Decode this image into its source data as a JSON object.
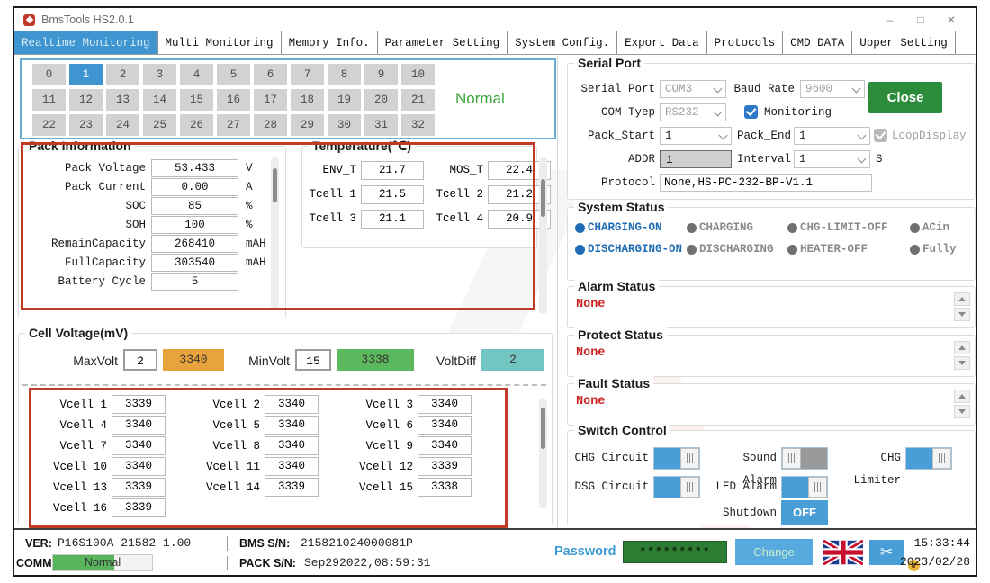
{
  "window": {
    "title": "BmsTools HS2.0.1",
    "controls": {
      "minimize": "–",
      "maximize": "□",
      "close": "✕"
    }
  },
  "tabs": [
    {
      "label": "Realtime Monitoring",
      "active": true
    },
    {
      "label": "Multi Monitoring",
      "active": false
    },
    {
      "label": "Memory Info.",
      "active": false
    },
    {
      "label": "Parameter Setting",
      "active": false
    },
    {
      "label": "System Config.",
      "active": false
    },
    {
      "label": "Export Data",
      "active": false
    },
    {
      "label": "Protocols",
      "active": false
    },
    {
      "label": "CMD DATA",
      "active": false
    },
    {
      "label": "Upper Setting",
      "active": false
    }
  ],
  "pack_selector": {
    "cells": [
      "0",
      "1",
      "2",
      "3",
      "4",
      "5",
      "6",
      "7",
      "8",
      "9",
      "10",
      "11",
      "12",
      "13",
      "14",
      "15",
      "16",
      "17",
      "18",
      "19",
      "20",
      "21",
      "22",
      "23",
      "24",
      "25",
      "26",
      "27",
      "28",
      "29",
      "30",
      "31",
      "32"
    ],
    "selected": "1",
    "status": "Normal"
  },
  "pack_information": {
    "title": "Pack Information",
    "rows": [
      {
        "label": "Pack Voltage",
        "value": "53.433",
        "unit": "V"
      },
      {
        "label": "Pack Current",
        "value": "0.00",
        "unit": "A"
      },
      {
        "label": "SOC",
        "value": "85",
        "unit": "%"
      },
      {
        "label": "SOH",
        "value": "100",
        "unit": "%"
      },
      {
        "label": "RemainCapacity",
        "value": "268410",
        "unit": "mAH"
      },
      {
        "label": "FullCapacity",
        "value": "303540",
        "unit": "mAH"
      },
      {
        "label": "Battery Cycle",
        "value": "5",
        "unit": ""
      }
    ]
  },
  "temperature": {
    "title": "Temperature(℃)",
    "rows": [
      [
        {
          "label": "ENV_T",
          "value": "21.7"
        },
        {
          "label": "MOS_T",
          "value": "22.4"
        }
      ],
      [
        {
          "label": "Tcell 1",
          "value": "21.5"
        },
        {
          "label": "Tcell 2",
          "value": "21.2"
        }
      ],
      [
        {
          "label": "Tcell 3",
          "value": "21.1"
        },
        {
          "label": "Tcell 4",
          "value": "20.9"
        }
      ]
    ]
  },
  "serial_port": {
    "title": "Serial Port",
    "serial_port_label": "Serial Port",
    "serial_port_value": "COM3",
    "baud_rate_label": "Baud Rate",
    "baud_rate_value": "9600",
    "close_button": "Close",
    "com_type_label": "COM Tyep",
    "com_type_value": "RS232",
    "monitoring_label": "Monitoring",
    "monitoring_checked": true,
    "pack_start_label": "Pack_Start",
    "pack_start_value": "1",
    "pack_end_label": "Pack_End",
    "pack_end_value": "1",
    "loop_display_label": "LoopDisplay",
    "loop_display_checked": true,
    "addr_label": "ADDR",
    "addr_value": "1",
    "interval_label": "Interval",
    "interval_value": "1",
    "interval_unit": "S",
    "protocol_label": "Protocol",
    "protocol_value": "None,HS-PC-232-BP-V1.1"
  },
  "system_status": {
    "title": "System Status",
    "items": [
      {
        "label": "CHARGING-ON",
        "on": true
      },
      {
        "label": "CHARGING",
        "on": false
      },
      {
        "label": "CHG-LIMIT-OFF",
        "on": false
      },
      {
        "label": "ACin",
        "on": false
      },
      {
        "label": "DISCHARGING-ON",
        "on": true
      },
      {
        "label": "DISCHARGING",
        "on": false
      },
      {
        "label": "HEATER-OFF",
        "on": false
      },
      {
        "label": "Fully",
        "on": false
      }
    ]
  },
  "alarm_status": {
    "title": "Alarm Status",
    "value": "None"
  },
  "protect_status": {
    "title": "Protect Status",
    "value": "None"
  },
  "fault_status": {
    "title": "Fault Status",
    "value": "None"
  },
  "cell_voltage": {
    "title": "Cell Voltage(mV)",
    "maxvolt_label": "MaxVolt",
    "maxvolt_index": "2",
    "maxvolt_value": "3340",
    "minvolt_label": "MinVolt",
    "minvolt_index": "15",
    "minvolt_value": "3338",
    "voltdiff_label": "VoltDiff",
    "voltdiff_value": "2",
    "cells": [
      {
        "label": "Vcell 1",
        "value": "3339"
      },
      {
        "label": "Vcell 2",
        "value": "3340"
      },
      {
        "label": "Vcell 3",
        "value": "3340"
      },
      {
        "label": "Vcell 4",
        "value": "3340"
      },
      {
        "label": "Vcell 5",
        "value": "3340"
      },
      {
        "label": "Vcell 6",
        "value": "3340"
      },
      {
        "label": "Vcell 7",
        "value": "3340"
      },
      {
        "label": "Vcell 8",
        "value": "3340"
      },
      {
        "label": "Vcell 9",
        "value": "3340"
      },
      {
        "label": "Vcell 10",
        "value": "3340"
      },
      {
        "label": "Vcell 11",
        "value": "3340"
      },
      {
        "label": "Vcell 12",
        "value": "3339"
      },
      {
        "label": "Vcell 13",
        "value": "3339"
      },
      {
        "label": "Vcell 14",
        "value": "3339"
      },
      {
        "label": "Vcell 15",
        "value": "3338"
      },
      {
        "label": "Vcell 16",
        "value": "3339"
      }
    ]
  },
  "switch_control": {
    "title": "Switch Control",
    "toggles": [
      {
        "label": "CHG Circuit",
        "on": true
      },
      {
        "label": "Sound Alarm",
        "on": false
      },
      {
        "label": "CHG Limiter",
        "on": true
      },
      {
        "label": "DSG Circuit",
        "on": true
      },
      {
        "label": "LED Alarm",
        "on": true
      }
    ],
    "shutdown_label": "Shutdown",
    "shutdown_value": "OFF"
  },
  "status_bar": {
    "ver_label": "VER:",
    "ver_value": "P16S100A-21582-1.00",
    "bms_sn_label": "BMS S/N:",
    "bms_sn_value": "215821024000081P",
    "comm_label": "COMM:",
    "comm_value": "Normal",
    "pack_sn_label": "PACK S/N:",
    "pack_sn_value": "Sep292022,08:59:31",
    "password_label": "Password",
    "password_value": "*********",
    "change_button": "Change",
    "time": "15:33:44",
    "date": "2023/02/28"
  },
  "colors": {
    "accent_blue": "#3e95d0",
    "status_active_blue": "#1f6cb4",
    "alert_red": "#cc2222",
    "normal_green": "#3aa53a",
    "close_button_green": "#2c8c3c",
    "maxvolt_orange": "#e8a33d",
    "minvolt_green": "#5cb85c",
    "voltdiff_teal": "#72c5c0",
    "annotation_red": "#c03a28",
    "password_green": "#2e7d35",
    "toggle_blue": "#4a9ed8"
  }
}
